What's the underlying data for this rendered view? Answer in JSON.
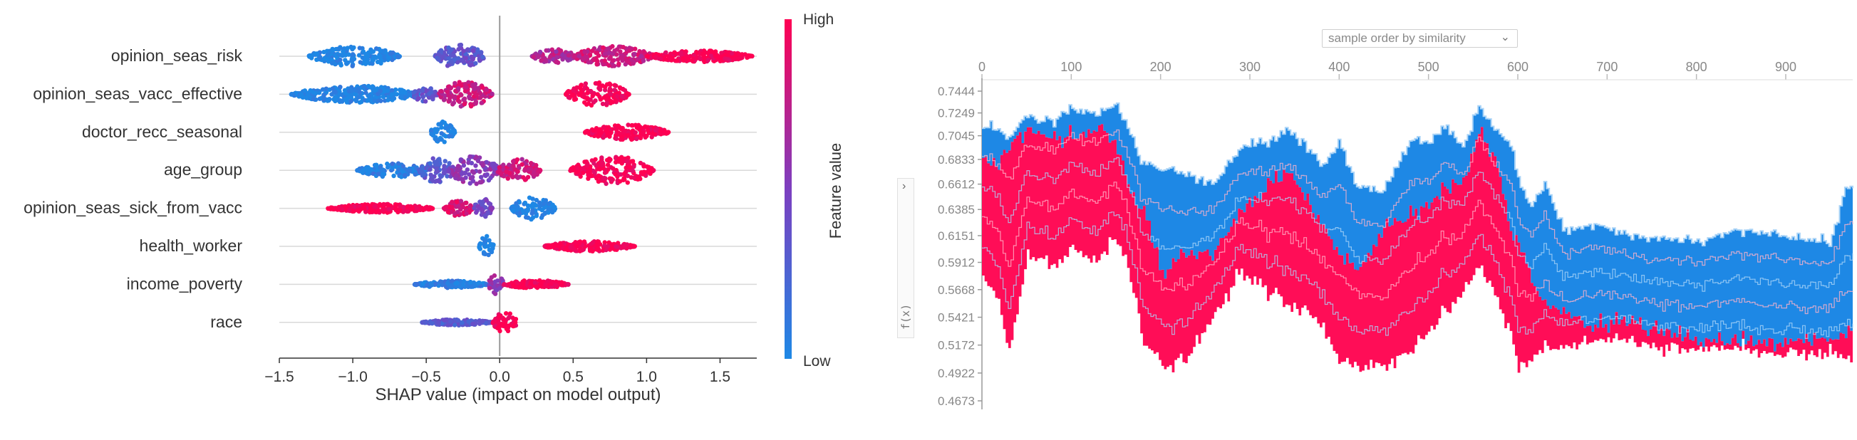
{
  "chart_data": [
    {
      "type": "scatter",
      "subtype": "beeswarm",
      "xlabel": "SHAP value (impact on model output)",
      "xlim": [
        -1.5,
        1.75
      ],
      "xticks": [
        -1.5,
        -1.0,
        -0.5,
        0.0,
        0.5,
        1.0,
        1.5
      ],
      "xtick_labels": [
        "−1.5",
        "−1.0",
        "−0.5",
        "0.0",
        "0.5",
        "1.0",
        "1.5"
      ],
      "features": [
        {
          "name": "opinion_seas_risk",
          "clusters": [
            {
              "lo": -1.3,
              "hi": -0.68,
              "w": 14,
              "val": 0.0
            },
            {
              "lo": -0.44,
              "hi": -0.1,
              "w": 17,
              "val": 0.35
            },
            {
              "lo": 0.22,
              "hi": 0.52,
              "w": 10,
              "val": 0.7
            },
            {
              "lo": 0.5,
              "hi": 1.05,
              "w": 14,
              "val": 0.8
            },
            {
              "lo": 1.0,
              "hi": 1.72,
              "w": 8,
              "val": 1.0
            }
          ]
        },
        {
          "name": "opinion_seas_vacc_effective",
          "clusters": [
            {
              "lo": -1.42,
              "hi": -0.55,
              "w": 12,
              "val": 0.0
            },
            {
              "lo": -0.6,
              "hi": -0.42,
              "w": 10,
              "val": 0.35
            },
            {
              "lo": -0.42,
              "hi": -0.05,
              "w": 18,
              "val": 0.8
            },
            {
              "lo": 0.45,
              "hi": 0.88,
              "w": 18,
              "val": 1.0
            }
          ]
        },
        {
          "name": "doctor_recc_seasonal",
          "clusters": [
            {
              "lo": -0.47,
              "hi": -0.3,
              "w": 16,
              "val": 0.0
            },
            {
              "lo": 0.58,
              "hi": 1.15,
              "w": 11,
              "val": 1.0
            }
          ]
        },
        {
          "name": "age_group",
          "clusters": [
            {
              "lo": -0.97,
              "hi": -0.5,
              "w": 10,
              "val": 0.05
            },
            {
              "lo": -0.55,
              "hi": -0.3,
              "w": 18,
              "val": 0.3
            },
            {
              "lo": -0.35,
              "hi": 0.0,
              "w": 20,
              "val": 0.55
            },
            {
              "lo": -0.02,
              "hi": 0.28,
              "w": 16,
              "val": 0.8
            },
            {
              "lo": 0.48,
              "hi": 1.05,
              "w": 20,
              "val": 1.0
            }
          ]
        },
        {
          "name": "opinion_seas_sick_from_vacc",
          "clusters": [
            {
              "lo": -1.17,
              "hi": -0.45,
              "w": 6,
              "val": 1.0
            },
            {
              "lo": -0.38,
              "hi": -0.18,
              "w": 11,
              "val": 0.85
            },
            {
              "lo": -0.18,
              "hi": -0.05,
              "w": 14,
              "val": 0.45
            },
            {
              "lo": 0.08,
              "hi": 0.38,
              "w": 16,
              "val": 0.0
            }
          ]
        },
        {
          "name": "health_worker",
          "clusters": [
            {
              "lo": -0.14,
              "hi": -0.04,
              "w": 15,
              "val": 0.0
            },
            {
              "lo": 0.3,
              "hi": 0.92,
              "w": 7,
              "val": 1.0
            }
          ]
        },
        {
          "name": "income_poverty",
          "clusters": [
            {
              "lo": -0.58,
              "hi": -0.08,
              "w": 5,
              "val": 0.05
            },
            {
              "lo": -0.08,
              "hi": 0.03,
              "w": 14,
              "val": 0.6
            },
            {
              "lo": 0.03,
              "hi": 0.47,
              "w": 6,
              "val": 1.0
            }
          ]
        },
        {
          "name": "race",
          "clusters": [
            {
              "lo": -0.53,
              "hi": -0.05,
              "w": 4,
              "val": 0.3
            },
            {
              "lo": -0.05,
              "hi": 0.12,
              "w": 15,
              "val": 1.0
            }
          ]
        }
      ],
      "colorbar": {
        "label": "Feature value",
        "high": "High",
        "low": "Low",
        "colors": [
          "#1e88e5",
          "#ff0052"
        ]
      }
    },
    {
      "type": "area",
      "subtype": "stacked force plot",
      "dropdown": "sample order by similarity",
      "ylabel": "f(x)",
      "x_range": [
        0,
        975
      ],
      "xticks": [
        0,
        100,
        200,
        300,
        400,
        500,
        600,
        700,
        800,
        900
      ],
      "yticks": [
        0.7444,
        0.7249,
        0.7045,
        0.6833,
        0.6612,
        0.6385,
        0.6151,
        0.5912,
        0.5668,
        0.5421,
        0.5172,
        0.4922,
        0.4673
      ],
      "ytick_labels": [
        "0.7444",
        "0.7249",
        "0.7045",
        "0.6833",
        "0.6612",
        "0.6385",
        "0.6151",
        "0.5912",
        "0.5668",
        "0.5421",
        "0.5172",
        "0.4922",
        "0.4673"
      ],
      "series": [
        {
          "name": "top",
          "x": [
            0,
            15,
            30,
            50,
            80,
            100,
            130,
            150,
            170,
            180,
            200,
            230,
            260,
            290,
            320,
            340,
            360,
            380,
            400,
            420,
            450,
            480,
            500,
            520,
            540,
            555,
            575,
            590,
            600,
            615,
            630,
            650,
            680,
            720,
            760,
            800,
            850,
            900,
            950,
            965,
            975
          ],
          "values": [
            0.715,
            0.71,
            0.705,
            0.722,
            0.717,
            0.728,
            0.722,
            0.733,
            0.695,
            0.68,
            0.675,
            0.67,
            0.662,
            0.695,
            0.7,
            0.71,
            0.698,
            0.675,
            0.698,
            0.66,
            0.655,
            0.7,
            0.698,
            0.712,
            0.695,
            0.73,
            0.708,
            0.7,
            0.665,
            0.64,
            0.66,
            0.62,
            0.625,
            0.618,
            0.612,
            0.61,
            0.62,
            0.615,
            0.61,
            0.655,
            0.66
          ]
        },
        {
          "name": "split",
          "x": [
            0,
            15,
            30,
            50,
            80,
            100,
            130,
            150,
            170,
            180,
            200,
            230,
            260,
            290,
            320,
            340,
            360,
            380,
            400,
            420,
            450,
            480,
            500,
            520,
            540,
            555,
            575,
            590,
            600,
            615,
            630,
            650,
            680,
            720,
            760,
            800,
            850,
            900,
            950,
            965,
            975
          ],
          "values": [
            0.685,
            0.68,
            0.695,
            0.712,
            0.702,
            0.705,
            0.712,
            0.698,
            0.64,
            0.64,
            0.58,
            0.6,
            0.6,
            0.64,
            0.66,
            0.67,
            0.65,
            0.625,
            0.595,
            0.585,
            0.62,
            0.635,
            0.64,
            0.66,
            0.665,
            0.71,
            0.685,
            0.62,
            0.61,
            0.575,
            0.555,
            0.548,
            0.535,
            0.538,
            0.53,
            0.52,
            0.52,
            0.52,
            0.52,
            0.53,
            0.535
          ]
        },
        {
          "name": "bottom",
          "x": [
            0,
            15,
            30,
            50,
            80,
            100,
            130,
            150,
            170,
            180,
            200,
            230,
            260,
            290,
            320,
            340,
            360,
            380,
            400,
            420,
            450,
            480,
            500,
            520,
            540,
            555,
            575,
            590,
            600,
            615,
            630,
            650,
            680,
            720,
            760,
            800,
            850,
            900,
            950,
            965,
            975
          ],
          "values": [
            0.582,
            0.56,
            0.51,
            0.6,
            0.585,
            0.605,
            0.59,
            0.615,
            0.565,
            0.52,
            0.498,
            0.505,
            0.545,
            0.585,
            0.565,
            0.555,
            0.55,
            0.53,
            0.505,
            0.495,
            0.5,
            0.51,
            0.53,
            0.55,
            0.565,
            0.59,
            0.56,
            0.53,
            0.495,
            0.505,
            0.515,
            0.515,
            0.52,
            0.52,
            0.515,
            0.515,
            0.515,
            0.51,
            0.51,
            0.505,
            0.505
          ]
        }
      ],
      "colors": {
        "positive": "#ff0d57",
        "negative": "#1e88e5",
        "line": "#aad4f7"
      }
    }
  ]
}
